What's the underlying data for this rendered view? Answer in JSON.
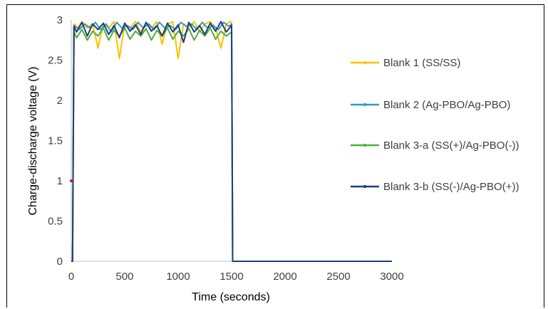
{
  "chart_data": {
    "type": "line",
    "xlabel": "Time (seconds)",
    "ylabel": "Charge-discharge voltage (V)",
    "xlim": [
      0,
      3000
    ],
    "ylim": [
      0,
      3
    ],
    "x_ticks": [
      "0",
      "500",
      "1000",
      "1500",
      "2000",
      "2500",
      "3000"
    ],
    "y_ticks": [
      "0",
      "0.5",
      "1",
      "1.5",
      "2",
      "2.5",
      "3"
    ],
    "grid": false,
    "legend_position": "right",
    "series": [
      {
        "name": "Blank 1 (SS/SS)",
        "color": "#FFC000",
        "x": [
          0,
          12,
          25,
          60,
          100,
          150,
          200,
          250,
          300,
          350,
          400,
          450,
          500,
          550,
          600,
          650,
          700,
          750,
          800,
          850,
          900,
          950,
          1000,
          1050,
          1100,
          1150,
          1200,
          1250,
          1300,
          1350,
          1400,
          1450,
          1490,
          1500,
          1510,
          2000,
          2500,
          3000
        ],
        "y": [
          0,
          0,
          2.95,
          2.9,
          2.98,
          2.9,
          2.95,
          2.65,
          2.95,
          2.9,
          2.98,
          2.52,
          2.95,
          2.9,
          2.98,
          2.85,
          2.95,
          2.9,
          2.98,
          2.7,
          2.95,
          2.98,
          2.52,
          2.95,
          2.9,
          2.98,
          2.85,
          2.95,
          2.98,
          2.9,
          2.65,
          2.95,
          2.98,
          2.95,
          0,
          0,
          0,
          0
        ]
      },
      {
        "name": "Blank 2 (Ag-PBO/Ag-PBO)",
        "color": "#2E9AD0",
        "x": [
          0,
          12,
          25,
          75,
          125,
          175,
          225,
          275,
          325,
          375,
          425,
          475,
          525,
          575,
          625,
          675,
          725,
          775,
          825,
          875,
          925,
          975,
          1025,
          1075,
          1125,
          1175,
          1225,
          1275,
          1325,
          1375,
          1425,
          1475,
          1500,
          1510,
          2000,
          2500,
          3000
        ],
        "y": [
          0,
          0,
          2.93,
          2.88,
          2.95,
          2.9,
          2.97,
          2.88,
          2.95,
          2.85,
          2.97,
          2.9,
          2.93,
          2.88,
          2.97,
          2.9,
          2.95,
          2.88,
          2.97,
          2.9,
          2.93,
          2.88,
          2.97,
          2.92,
          2.95,
          2.88,
          2.97,
          2.9,
          2.93,
          2.88,
          2.97,
          2.92,
          2.95,
          0,
          0,
          0,
          0
        ]
      },
      {
        "name": "Blank 3-a (SS(+)/Ag-PBO(-))",
        "color": "#4CAF3C",
        "x": [
          0,
          12,
          25,
          50,
          100,
          150,
          200,
          250,
          300,
          350,
          400,
          450,
          500,
          550,
          600,
          650,
          700,
          750,
          800,
          850,
          900,
          950,
          1000,
          1050,
          1100,
          1150,
          1200,
          1250,
          1300,
          1350,
          1400,
          1450,
          1500,
          1510,
          2000,
          2500,
          3000
        ],
        "y": [
          0,
          0,
          2.85,
          2.78,
          2.88,
          2.75,
          2.86,
          2.8,
          2.9,
          2.75,
          2.87,
          2.8,
          2.9,
          2.76,
          2.86,
          2.8,
          2.89,
          2.75,
          2.87,
          2.8,
          2.9,
          2.76,
          2.86,
          2.8,
          2.89,
          2.75,
          2.87,
          2.8,
          2.9,
          2.76,
          2.86,
          2.8,
          2.85,
          0,
          0,
          0,
          0
        ]
      },
      {
        "name": "Blank 3-b (SS(-)/Ag-PBO(+))",
        "color": "#1F3D7A",
        "x": [
          0,
          12,
          25,
          50,
          100,
          150,
          200,
          250,
          300,
          350,
          400,
          450,
          500,
          550,
          600,
          650,
          700,
          750,
          800,
          850,
          900,
          950,
          1000,
          1050,
          1100,
          1150,
          1200,
          1250,
          1300,
          1350,
          1400,
          1450,
          1500,
          1510,
          2000,
          2500,
          3000
        ],
        "y": [
          0,
          0,
          2.92,
          2.85,
          2.97,
          2.8,
          2.95,
          2.88,
          2.96,
          2.82,
          2.93,
          2.78,
          2.96,
          2.86,
          2.94,
          2.82,
          2.97,
          2.86,
          2.93,
          2.8,
          2.96,
          2.85,
          2.94,
          2.72,
          2.97,
          2.85,
          2.93,
          2.82,
          2.96,
          2.86,
          2.98,
          2.85,
          2.93,
          0,
          0,
          0,
          0
        ]
      }
    ],
    "annotation_point": {
      "x": 0,
      "y": 1,
      "color": "#E02020"
    }
  }
}
